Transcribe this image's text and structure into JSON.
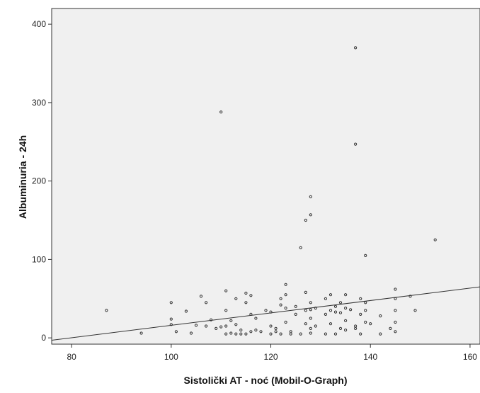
{
  "chart_data": {
    "type": "scatter",
    "title": "",
    "xlabel": "Sistolički AT - noć (Mobil-O-Graph)",
    "ylabel": "Albuminuria - 24h",
    "xlim": [
      76,
      162
    ],
    "ylim": [
      -8,
      420
    ],
    "xticks": [
      80,
      100,
      120,
      140,
      160
    ],
    "yticks": [
      0,
      100,
      200,
      300,
      400
    ],
    "grid": false,
    "plot_background": "#f0f0f0",
    "point_color": "#333333",
    "line_color": "#333333",
    "fit_line": {
      "x": [
        76,
        162
      ],
      "y": [
        -3,
        65
      ]
    },
    "points": [
      [
        87,
        35
      ],
      [
        94,
        6
      ],
      [
        100,
        45
      ],
      [
        100,
        24
      ],
      [
        100,
        17
      ],
      [
        101,
        8
      ],
      [
        103,
        34
      ],
      [
        104,
        6
      ],
      [
        105,
        16
      ],
      [
        106,
        53
      ],
      [
        107,
        45
      ],
      [
        107,
        15
      ],
      [
        108,
        23
      ],
      [
        109,
        12
      ],
      [
        110,
        14
      ],
      [
        110,
        288
      ],
      [
        111,
        60
      ],
      [
        111,
        35
      ],
      [
        111,
        15
      ],
      [
        111,
        5
      ],
      [
        112,
        22
      ],
      [
        112,
        6
      ],
      [
        113,
        17
      ],
      [
        113,
        5
      ],
      [
        113,
        50
      ],
      [
        114,
        10
      ],
      [
        114,
        5
      ],
      [
        115,
        57
      ],
      [
        115,
        45
      ],
      [
        115,
        5
      ],
      [
        116,
        54
      ],
      [
        116,
        30
      ],
      [
        116,
        8
      ],
      [
        117,
        25
      ],
      [
        117,
        10
      ],
      [
        118,
        8
      ],
      [
        119,
        35
      ],
      [
        120,
        33
      ],
      [
        120,
        5
      ],
      [
        120,
        15
      ],
      [
        121,
        12
      ],
      [
        121,
        8
      ],
      [
        122,
        50
      ],
      [
        122,
        42
      ],
      [
        122,
        5
      ],
      [
        123,
        55
      ],
      [
        123,
        38
      ],
      [
        123,
        20
      ],
      [
        123,
        68
      ],
      [
        124,
        8
      ],
      [
        124,
        5
      ],
      [
        125,
        40
      ],
      [
        125,
        30
      ],
      [
        126,
        115
      ],
      [
        126,
        5
      ],
      [
        127,
        150
      ],
      [
        127,
        58
      ],
      [
        127,
        35
      ],
      [
        127,
        18
      ],
      [
        128,
        157
      ],
      [
        128,
        180
      ],
      [
        128,
        45
      ],
      [
        128,
        36
      ],
      [
        128,
        25
      ],
      [
        128,
        12
      ],
      [
        128,
        6
      ],
      [
        129,
        38
      ],
      [
        129,
        15
      ],
      [
        131,
        50
      ],
      [
        131,
        30
      ],
      [
        131,
        5
      ],
      [
        132,
        55
      ],
      [
        132,
        35
      ],
      [
        132,
        18
      ],
      [
        133,
        40
      ],
      [
        133,
        33
      ],
      [
        133,
        5
      ],
      [
        134,
        45
      ],
      [
        134,
        32
      ],
      [
        134,
        12
      ],
      [
        135,
        55
      ],
      [
        135,
        38
      ],
      [
        135,
        22
      ],
      [
        135,
        10
      ],
      [
        136,
        36
      ],
      [
        137,
        370
      ],
      [
        137,
        247
      ],
      [
        137,
        15
      ],
      [
        137,
        12
      ],
      [
        138,
        50
      ],
      [
        138,
        30
      ],
      [
        138,
        5
      ],
      [
        139,
        105
      ],
      [
        139,
        45
      ],
      [
        139,
        35
      ],
      [
        139,
        20
      ],
      [
        140,
        18
      ],
      [
        142,
        28
      ],
      [
        142,
        5
      ],
      [
        144,
        12
      ],
      [
        145,
        62
      ],
      [
        145,
        50
      ],
      [
        145,
        35
      ],
      [
        145,
        20
      ],
      [
        145,
        8
      ],
      [
        148,
        53
      ],
      [
        149,
        35
      ],
      [
        153,
        125
      ]
    ]
  }
}
